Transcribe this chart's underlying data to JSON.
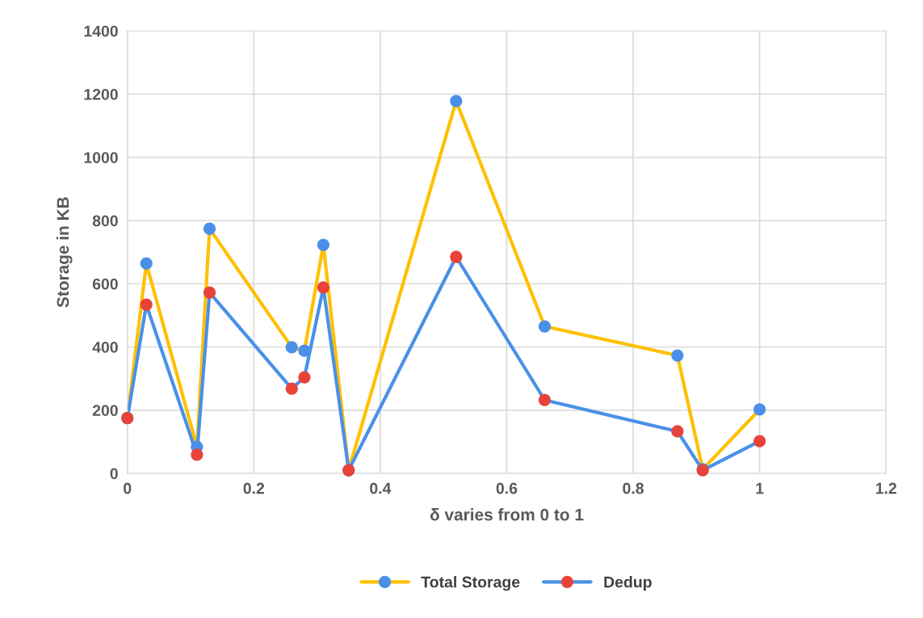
{
  "chart_data": {
    "type": "line",
    "xlabel": "δ varies from 0 to 1",
    "ylabel": "Storage in KB",
    "x": [
      0,
      0.03,
      0.11,
      0.13,
      0.26,
      0.28,
      0.31,
      0.35,
      0.52,
      0.66,
      0.87,
      0.91,
      1.0
    ],
    "series": [
      {
        "name": "Total Storage",
        "color": "#ffc000",
        "colors": [
          "#4a90e8",
          "#4a90e8",
          "#4a90e8",
          "#4a90e8",
          "#4a90e8",
          "#4a90e8",
          "#4a90e8",
          "#4a90e8",
          "#4a90e8",
          "#4a90e8",
          "#4a90e8",
          "#4a90e8",
          "#4a90e8"
        ],
        "values": [
          175,
          664,
          84,
          774,
          399,
          388,
          723,
          10,
          1178,
          465,
          373,
          13,
          202
        ]
      },
      {
        "name": "Dedup",
        "color": "#4a90e8",
        "colors": [
          "#e8433a",
          "#e8433a",
          "#e8433a",
          "#e8433a",
          "#e8433a",
          "#e8433a",
          "#e8433a",
          "#e8433a",
          "#e8433a",
          "#e8433a",
          "#e8433a",
          "#e8433a",
          "#e8433a"
        ],
        "values": [
          175,
          534,
          59,
          572,
          268,
          304,
          588,
          10,
          685,
          232,
          133,
          10,
          102
        ]
      }
    ],
    "xlim": [
      0,
      1.2
    ],
    "xticks": [
      0,
      0.2,
      0.4,
      0.6,
      0.8,
      1,
      1.2
    ],
    "ylim": [
      0,
      1400
    ],
    "yticks": [
      0,
      200,
      400,
      600,
      800,
      1000,
      1200,
      1400
    ],
    "grid": true,
    "legend": "bottom",
    "marker": "circle",
    "line_style": "solid"
  }
}
